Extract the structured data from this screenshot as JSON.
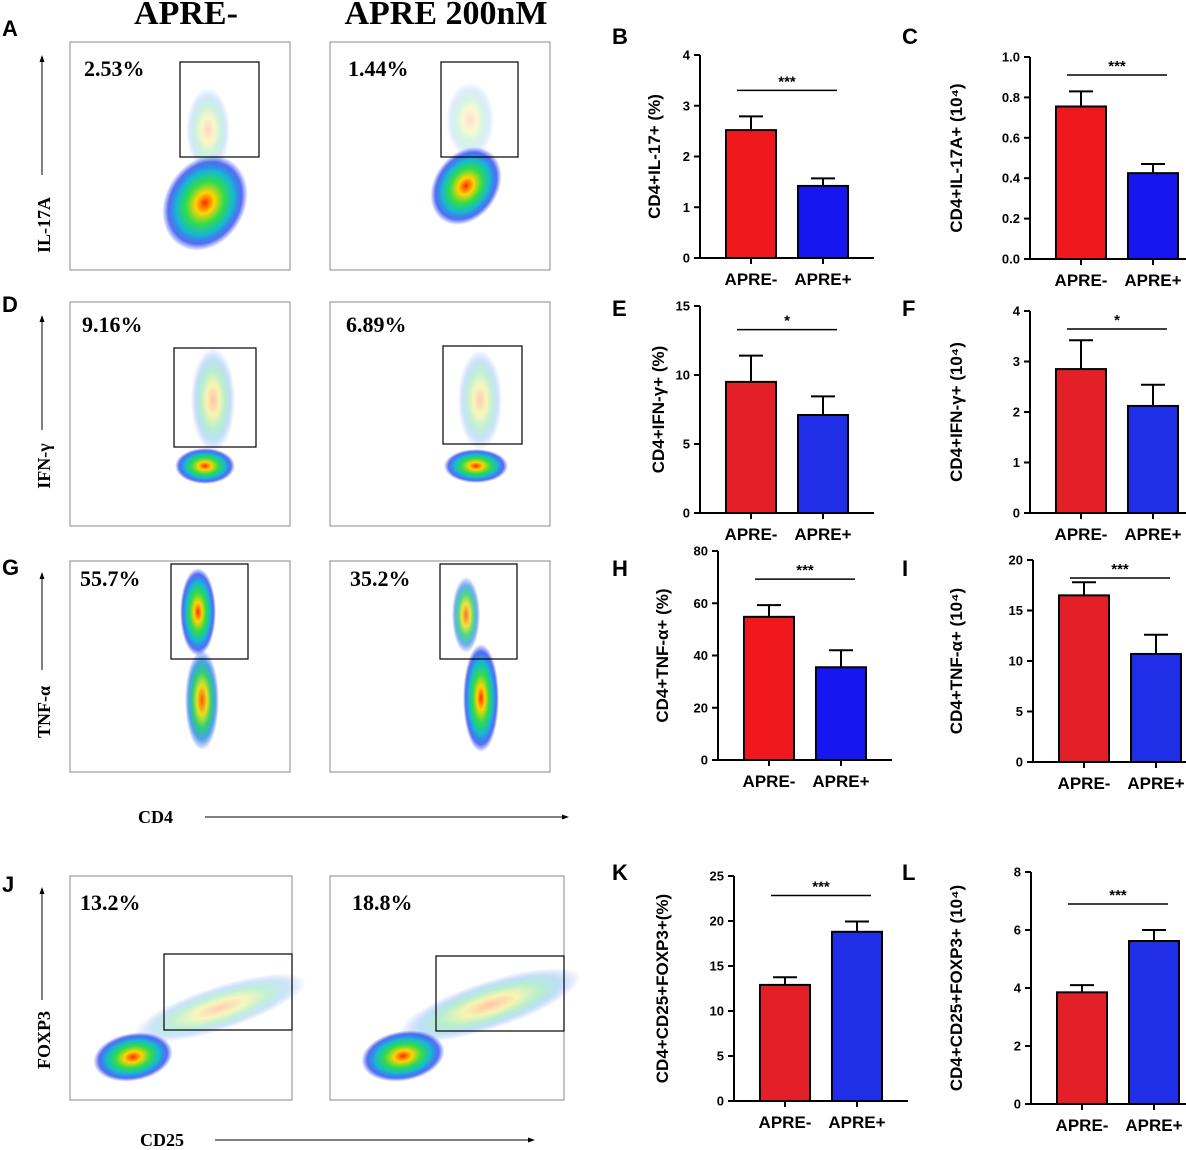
{
  "column_titles": [
    "APRE-",
    "APRE 200nM"
  ],
  "flow_rows": [
    {
      "letter": "A",
      "y_axis": "IL-17A",
      "percents": [
        "2.53%",
        "1.44%"
      ]
    },
    {
      "letter": "D",
      "y_axis": "IFN-γ",
      "percents": [
        "9.16%",
        "6.89%"
      ]
    },
    {
      "letter": "G",
      "y_axis": "TNF-α",
      "percents": [
        "55.7%",
        "35.2%"
      ]
    },
    {
      "letter": "J",
      "y_axis": "FOXP3",
      "percents": [
        "13.2%",
        "18.8%"
      ]
    }
  ],
  "x_axis_labels": [
    "CD4",
    "CD25"
  ],
  "colors": {
    "red": "#f0171d",
    "red2": "#e32028",
    "blue": "#1616f0",
    "blue2": "#1f2fe8"
  },
  "chart_data": [
    {
      "letter": "B",
      "type": "bar",
      "ylabel": "CD4+IL-17+ (%)",
      "categories": [
        "APRE-",
        "APRE+"
      ],
      "values": [
        2.52,
        1.42
      ],
      "errors": [
        0.27,
        0.15
      ],
      "ylim": [
        0,
        4
      ],
      "ticks": [
        "0",
        "1",
        "2",
        "3",
        "4"
      ],
      "significance": "***"
    },
    {
      "letter": "C",
      "type": "bar",
      "ylabel": "CD4+IL-17A+ (10⁴)",
      "categories": [
        "APRE-",
        "APRE+"
      ],
      "values": [
        0.755,
        0.425
      ],
      "errors": [
        0.075,
        0.045
      ],
      "ylim": [
        0,
        1.0
      ],
      "ticks": [
        "0.0",
        "0.2",
        "0.4",
        "0.6",
        "0.8",
        "1.0"
      ],
      "significance": "***"
    },
    {
      "letter": "E",
      "type": "bar",
      "ylabel": "CD4+IFN-γ+ (%)",
      "categories": [
        "APRE-",
        "APRE+"
      ],
      "values": [
        9.5,
        7.1
      ],
      "errors": [
        1.9,
        1.35
      ],
      "ylim": [
        0,
        15
      ],
      "ticks": [
        "0",
        "5",
        "10",
        "15"
      ],
      "significance": "*"
    },
    {
      "letter": "F",
      "type": "bar",
      "ylabel": "CD4+IFN-γ+ (10⁴)",
      "categories": [
        "APRE-",
        "APRE+"
      ],
      "values": [
        2.85,
        2.12
      ],
      "errors": [
        0.57,
        0.42
      ],
      "ylim": [
        0,
        4
      ],
      "ticks": [
        "0",
        "1",
        "2",
        "3",
        "4"
      ],
      "significance": "*"
    },
    {
      "letter": "H",
      "type": "bar",
      "ylabel": "CD4+TNF-α+ (%)",
      "categories": [
        "APRE-",
        "APRE+"
      ],
      "values": [
        54.8,
        35.5
      ],
      "errors": [
        4.5,
        6.5
      ],
      "ylim": [
        0,
        80
      ],
      "ticks": [
        "0",
        "20",
        "40",
        "60",
        "80"
      ],
      "significance": "***"
    },
    {
      "letter": "I",
      "type": "bar",
      "ylabel": "CD4+TNF-α+ (10⁴)",
      "categories": [
        "APRE-",
        "APRE+"
      ],
      "values": [
        16.5,
        10.7
      ],
      "errors": [
        1.3,
        1.9
      ],
      "ylim": [
        0,
        20
      ],
      "ticks": [
        "0",
        "5",
        "10",
        "15",
        "20"
      ],
      "significance": "***"
    },
    {
      "letter": "K",
      "type": "bar",
      "ylabel": "CD4+CD25+FOXP3+(%)",
      "categories": [
        "APRE-",
        "APRE+"
      ],
      "values": [
        12.9,
        18.8
      ],
      "errors": [
        0.85,
        1.15
      ],
      "ylim": [
        0,
        25
      ],
      "ticks": [
        "0",
        "5",
        "10",
        "15",
        "20",
        "25"
      ],
      "significance": "***"
    },
    {
      "letter": "L",
      "type": "bar",
      "ylabel": "CD4+CD25+FOXP3+ (10⁴)",
      "categories": [
        "APRE-",
        "APRE+"
      ],
      "values": [
        3.85,
        5.62
      ],
      "errors": [
        0.25,
        0.38
      ],
      "ylim": [
        0,
        8
      ],
      "ticks": [
        "0",
        "2",
        "4",
        "6",
        "8"
      ],
      "significance": "***"
    }
  ]
}
